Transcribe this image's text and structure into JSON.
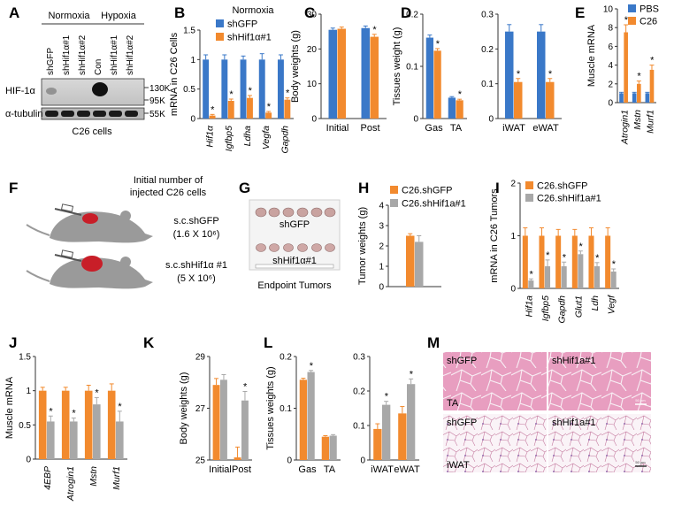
{
  "panel_letters": [
    "A",
    "B",
    "C",
    "D",
    "E",
    "F",
    "G",
    "H",
    "I",
    "J",
    "K",
    "L",
    "M"
  ],
  "colors": {
    "blue": "#3a78c8",
    "orange": "#f28a2e",
    "gray": "#a8a8a8",
    "he_pink": "#e7a3c2",
    "he_light": "#f6e4ee",
    "axis": "#333333",
    "mouse_gray": "#9a9a9a",
    "tumor_red": "#c81e28"
  },
  "panelA": {
    "groups": [
      "Normoxia",
      "Hypoxia"
    ],
    "lanes": [
      "shGFP",
      "shHif1α#1",
      "shHif1α#2",
      "Con",
      "shHif1α#1",
      "shHif1α#2"
    ],
    "bands": [
      "HIF-1α",
      "α-tubulin"
    ],
    "markers": [
      "130K",
      "95K",
      "55K"
    ],
    "caption": "C26 cells"
  },
  "panelF": {
    "header": "Initial number of injected C26 cells",
    "header_lines": [
      "Initial number of",
      "injected C26 cells"
    ],
    "row1_label": "s.c.shGFP",
    "row1_count": "(1.6 X 10⁶)",
    "row2_label": "s.c.shHif1α #1",
    "row2_count": "(5 X 10⁶)"
  },
  "panelG": {
    "label_top": "shGFP",
    "label_bottom": "shHif1α#1",
    "caption": "Endpoint Tumors"
  },
  "panelM": {
    "tl": "shGFP",
    "tr": "shHif1a#1",
    "tl_tissue": "TA",
    "bl": "shGFP",
    "br": "shHif1a#1",
    "bl_tissue": "iWAT",
    "scale_bar": "50 µm"
  },
  "chart_data": [
    {
      "id": "B",
      "type": "bar",
      "title": "Normoxia",
      "ylabel": "mRNA in C26 Cells",
      "ylim": [
        0,
        1.5
      ],
      "yticks": [
        0,
        0.5,
        1,
        1.5
      ],
      "categories": [
        "Hif1α",
        "Igfbp5",
        "Ldha",
        "Vegfa",
        "Gapdh"
      ],
      "italic_categories": true,
      "legend": [
        "shGFP",
        "shHif1α#1"
      ],
      "series": [
        {
          "name": "shGFP",
          "color": "blue",
          "values": [
            1.0,
            1.0,
            1.0,
            1.0,
            1.0
          ],
          "errors": [
            0.08,
            0.08,
            0.06,
            0.1,
            0.08
          ]
        },
        {
          "name": "shHif1α#1",
          "color": "orange",
          "values": [
            0.05,
            0.3,
            0.35,
            0.1,
            0.32
          ],
          "errors": [
            0.02,
            0.03,
            0.04,
            0.02,
            0.03
          ],
          "sig": [
            true,
            true,
            true,
            true,
            true
          ]
        }
      ]
    },
    {
      "id": "C",
      "type": "bar",
      "ylabel": "Body weights (g)",
      "ylim": [
        0,
        30
      ],
      "yticks": [
        0,
        10,
        20,
        30
      ],
      "categories": [
        "Initial",
        "Post"
      ],
      "series": [
        {
          "name": "shGFP",
          "color": "blue",
          "values": [
            25.5,
            26
          ],
          "errors": [
            0.5,
            0.6
          ]
        },
        {
          "name": "shHif1α#1",
          "color": "orange",
          "values": [
            25.8,
            23.5
          ],
          "errors": [
            0.5,
            0.7
          ],
          "sig": [
            false,
            true
          ]
        }
      ]
    },
    {
      "id": "D1",
      "type": "bar",
      "ylabel": "Tissues weight (g)",
      "ylim": [
        0,
        0.2
      ],
      "yticks": [
        0,
        0.1,
        0.2
      ],
      "categories": [
        "Gas",
        "TA"
      ],
      "series": [
        {
          "name": "shGFP",
          "color": "blue",
          "values": [
            0.155,
            0.04
          ],
          "errors": [
            0.005,
            0.002
          ]
        },
        {
          "name": "shHif1α#1",
          "color": "orange",
          "values": [
            0.13,
            0.035
          ],
          "errors": [
            0.004,
            0.002
          ],
          "sig": [
            true,
            true
          ]
        }
      ]
    },
    {
      "id": "D2",
      "type": "bar",
      "ylabel": "",
      "ylim": [
        0,
        0.3
      ],
      "yticks": [
        0,
        0.1,
        0.2,
        0.3
      ],
      "categories": [
        "iWAT",
        "eWAT"
      ],
      "series": [
        {
          "name": "shGFP",
          "color": "blue",
          "values": [
            0.25,
            0.25
          ],
          "errors": [
            0.02,
            0.02
          ]
        },
        {
          "name": "shHif1α#1",
          "color": "orange",
          "values": [
            0.105,
            0.105
          ],
          "errors": [
            0.01,
            0.01
          ],
          "sig": [
            true,
            true
          ]
        }
      ]
    },
    {
      "id": "E",
      "type": "bar",
      "ylabel": "Muscle mRNA",
      "ylim": [
        0,
        10
      ],
      "yticks": [
        0,
        2,
        4,
        6,
        8,
        10
      ],
      "categories": [
        "Atrogin1",
        "Mstn",
        "Murf1"
      ],
      "italic_categories": true,
      "legend": [
        "PBS",
        "C26"
      ],
      "series": [
        {
          "name": "PBS",
          "color": "blue",
          "values": [
            1,
            1,
            1
          ],
          "errors": [
            0.1,
            0.1,
            0.1
          ]
        },
        {
          "name": "C26",
          "color": "orange",
          "values": [
            7.5,
            2,
            3.5
          ],
          "errors": [
            0.8,
            0.3,
            0.5
          ],
          "sig": [
            true,
            true,
            true
          ]
        }
      ]
    },
    {
      "id": "H",
      "type": "bar",
      "ylabel": "Tumor weights (g)",
      "ylim": [
        0,
        4
      ],
      "yticks": [
        0,
        1,
        2,
        3,
        4
      ],
      "categories": [
        ""
      ],
      "legend": [
        "C26.shGFP",
        "C26.shHif1a#1"
      ],
      "series": [
        {
          "name": "C26.shGFP",
          "color": "orange",
          "values": [
            2.5
          ],
          "errors": [
            0.1
          ]
        },
        {
          "name": "C26.shHif1a#1",
          "color": "gray",
          "values": [
            2.2
          ],
          "errors": [
            0.3
          ]
        }
      ]
    },
    {
      "id": "I",
      "type": "bar",
      "ylabel": "mRNA in C26 Tumors",
      "ylim": [
        0,
        2
      ],
      "yticks": [
        0,
        1,
        2
      ],
      "categories": [
        "Hif1a",
        "Igfbp5",
        "Gapdh",
        "Glut1",
        "Ldh",
        "Vegf"
      ],
      "italic_categories": true,
      "legend": [
        "C26.shGFP",
        "C26.shHif1a#1"
      ],
      "series": [
        {
          "name": "C26.shGFP",
          "color": "orange",
          "values": [
            1,
            1,
            1,
            1,
            1,
            1
          ],
          "errors": [
            0.15,
            0.15,
            0.12,
            0.12,
            0.15,
            0.15
          ]
        },
        {
          "name": "C26.shHif1a#1",
          "color": "gray",
          "values": [
            0.15,
            0.42,
            0.42,
            0.65,
            0.42,
            0.32
          ],
          "errors": [
            0.03,
            0.12,
            0.08,
            0.06,
            0.07,
            0.05
          ],
          "sig": [
            true,
            true,
            true,
            true,
            true,
            true
          ]
        }
      ]
    },
    {
      "id": "J",
      "type": "bar",
      "ylabel": "Muscle mRNA",
      "ylim": [
        0,
        1.5
      ],
      "yticks": [
        0,
        0.5,
        1,
        1.5
      ],
      "categories": [
        "4EBP",
        "Atrogin1",
        "Mstn",
        "Murf1"
      ],
      "italic_categories": true,
      "series": [
        {
          "name": "C26.shGFP",
          "color": "orange",
          "values": [
            1,
            1,
            1,
            1
          ],
          "errors": [
            0.05,
            0.05,
            0.08,
            0.1
          ]
        },
        {
          "name": "C26.shHif1a#1",
          "color": "gray",
          "values": [
            0.55,
            0.55,
            0.8,
            0.55
          ],
          "errors": [
            0.08,
            0.05,
            0.1,
            0.15
          ],
          "sig": [
            true,
            true,
            true,
            true
          ]
        }
      ]
    },
    {
      "id": "K",
      "type": "bar",
      "ylabel": "Body weights (g)",
      "ylim": [
        25,
        29
      ],
      "yticks": [
        25,
        27,
        29
      ],
      "categories": [
        "Initial",
        "Post"
      ],
      "series": [
        {
          "name": "C26.shGFP",
          "color": "orange",
          "values": [
            27.9,
            25.1
          ],
          "errors": [
            0.25,
            0.4
          ]
        },
        {
          "name": "C26.shHif1a#1",
          "color": "gray",
          "values": [
            28.1,
            27.3
          ],
          "errors": [
            0.2,
            0.35
          ],
          "sig": [
            false,
            true
          ]
        }
      ]
    },
    {
      "id": "L1",
      "type": "bar",
      "ylabel": "Tissues weights (g)",
      "ylim": [
        0,
        0.2
      ],
      "yticks": [
        0,
        0.1,
        0.2
      ],
      "categories": [
        "Gas",
        "TA"
      ],
      "series": [
        {
          "name": "C26.shGFP",
          "color": "orange",
          "values": [
            0.155,
            0.045
          ],
          "errors": [
            0.003,
            0.002
          ]
        },
        {
          "name": "C26.shHif1a#1",
          "color": "gray",
          "values": [
            0.17,
            0.047
          ],
          "errors": [
            0.003,
            0.002
          ],
          "sig": [
            true,
            false
          ]
        }
      ]
    },
    {
      "id": "L2",
      "type": "bar",
      "ylabel": "",
      "ylim": [
        0,
        0.3
      ],
      "yticks": [
        0,
        0.1,
        0.2,
        0.3
      ],
      "categories": [
        "iWAT",
        "eWAT"
      ],
      "series": [
        {
          "name": "C26.shGFP",
          "color": "orange",
          "values": [
            0.09,
            0.135
          ],
          "errors": [
            0.015,
            0.02
          ]
        },
        {
          "name": "C26.shHif1a#1",
          "color": "gray",
          "values": [
            0.16,
            0.22
          ],
          "errors": [
            0.01,
            0.015
          ],
          "sig": [
            true,
            true
          ]
        }
      ]
    }
  ]
}
